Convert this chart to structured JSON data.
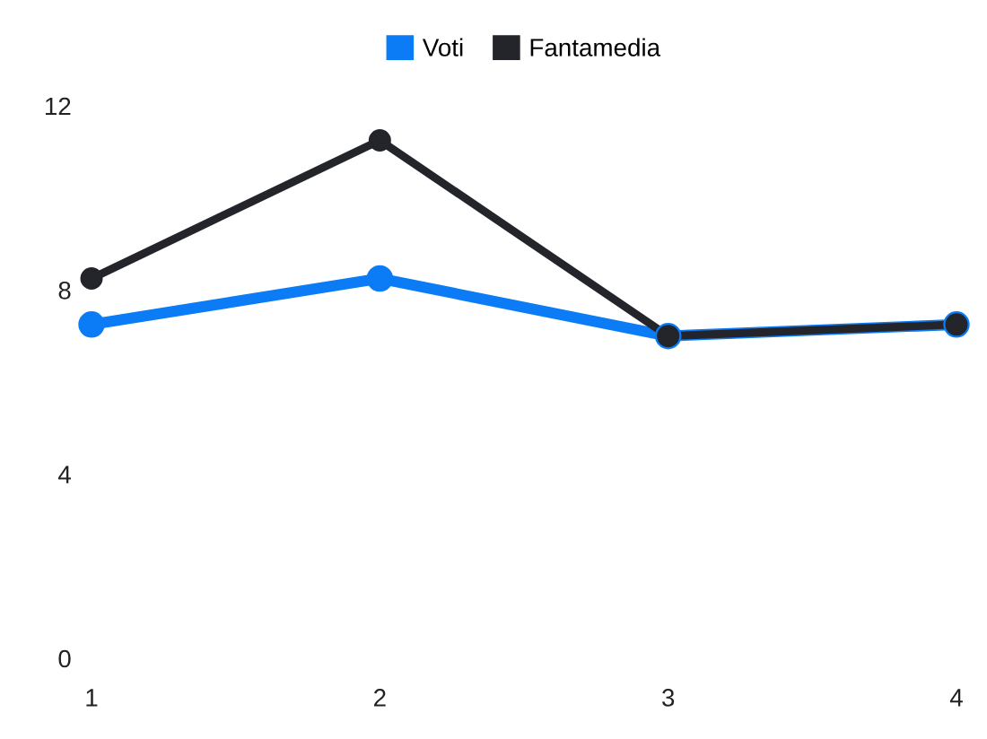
{
  "chart_data": {
    "type": "line",
    "x": [
      1,
      2,
      3,
      4
    ],
    "series": [
      {
        "name": "Voti",
        "color": "#0b7cf5",
        "values": [
          7.25,
          8.25,
          7,
          7.25
        ]
      },
      {
        "name": "Fantamedia",
        "color": "#23252a",
        "values": [
          8.25,
          11.25,
          7,
          7.25
        ]
      }
    ],
    "xlim": [
      1,
      4
    ],
    "xticks": [
      1,
      2,
      3,
      4
    ],
    "ylim": [
      0,
      12
    ],
    "yticks": [
      0,
      4,
      8,
      12
    ],
    "grid": false,
    "legend": "top",
    "marker": "circle",
    "line_style": "solid"
  }
}
